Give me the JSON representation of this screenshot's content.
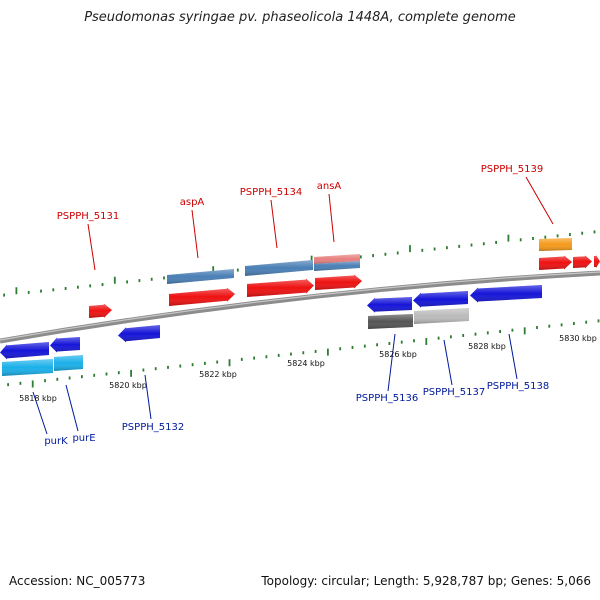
{
  "title": "Pseudomonas syringae pv. phaseolicola 1448A, complete genome",
  "footer": {
    "accession": "Accession: NC_005773",
    "summary": "Topology: circular; Length: 5,928,787 bp; Genes: 5,066"
  },
  "colors": {
    "backbone": "#8c8c8c",
    "tick": "#2e7d32",
    "label_forward": "#cc0000",
    "label_reverse": "#00199a",
    "cds_red": "#ee1111",
    "gene_steelblue": "#4a7fb5",
    "rna_pink": "#e88080",
    "cds_blue": "#1515d8",
    "gene_cyan": "#1ab0ea",
    "gene_darkgray": "#555555",
    "gene_lightgray": "#bbbbbb",
    "gene_orange": "#f59a1a"
  },
  "scale": {
    "tick_labels": [
      "5818 kbp",
      "5820 kbp",
      "5822 kbp",
      "5824 kbp",
      "5826 kbp",
      "5828 kbp",
      "5830 kbp"
    ]
  },
  "genes": [
    {
      "label": "PSPPH_5131",
      "strand": "forward",
      "color": "cds_red"
    },
    {
      "label": "aspA",
      "strand": "forward",
      "color": "gene_steelblue"
    },
    {
      "label": "PSPPH_5134",
      "strand": "forward",
      "color": "gene_steelblue"
    },
    {
      "label": "ansA",
      "strand": "forward",
      "color": "rna_pink"
    },
    {
      "label": "PSPPH_5139",
      "strand": "forward",
      "color": "gene_orange"
    },
    {
      "label": "purK",
      "strand": "reverse",
      "color": "gene_cyan"
    },
    {
      "label": "purE",
      "strand": "reverse",
      "color": "gene_cyan"
    },
    {
      "label": "PSPPH_5132",
      "strand": "reverse",
      "color": "cds_blue"
    },
    {
      "label": "PSPPH_5136",
      "strand": "reverse",
      "color": "gene_darkgray"
    },
    {
      "label": "PSPPH_5137",
      "strand": "reverse",
      "color": "gene_lightgray"
    },
    {
      "label": "PSPPH_5138",
      "strand": "reverse",
      "color": "cds_blue"
    }
  ]
}
